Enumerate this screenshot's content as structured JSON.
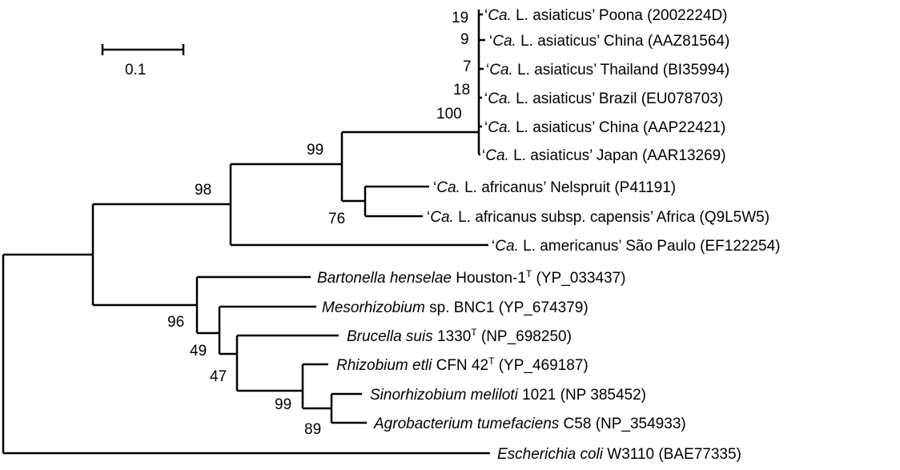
{
  "scale_bar": {
    "label": "0.1"
  },
  "leaves": [
    {
      "id": "poona",
      "parts": [
        [
          "plain",
          "‘"
        ],
        [
          "italic",
          "Ca."
        ],
        [
          "plain",
          " L. asiaticus’ Poona (2002224D)"
        ]
      ]
    },
    {
      "id": "china1",
      "parts": [
        [
          "plain",
          "‘"
        ],
        [
          "italic",
          "Ca."
        ],
        [
          "plain",
          " L. asiaticus’ China (AAZ81564)"
        ]
      ]
    },
    {
      "id": "thailand",
      "parts": [
        [
          "plain",
          "‘"
        ],
        [
          "italic",
          "Ca."
        ],
        [
          "plain",
          " L. asiaticus’ Thailand (BI35994)"
        ]
      ]
    },
    {
      "id": "brazil",
      "parts": [
        [
          "plain",
          "‘"
        ],
        [
          "italic",
          "Ca."
        ],
        [
          "plain",
          " L. asiaticus’ Brazil (EU078703)"
        ]
      ]
    },
    {
      "id": "china2",
      "parts": [
        [
          "plain",
          "‘"
        ],
        [
          "italic",
          "Ca."
        ],
        [
          "plain",
          " L. asiaticus’ China (AAP22421)"
        ]
      ]
    },
    {
      "id": "japan",
      "parts": [
        [
          "plain",
          "‘"
        ],
        [
          "italic",
          "Ca."
        ],
        [
          "plain",
          " L. asiaticus’ Japan (AAR13269)"
        ]
      ]
    },
    {
      "id": "nelspruit",
      "parts": [
        [
          "plain",
          "‘"
        ],
        [
          "italic",
          "Ca."
        ],
        [
          "plain",
          " L. africanus’ Nelspruit (P41191)"
        ]
      ]
    },
    {
      "id": "capensis",
      "parts": [
        [
          "plain",
          "‘"
        ],
        [
          "italic",
          "Ca."
        ],
        [
          "plain",
          " L. africanus subsp. capensis’ Africa (Q9L5W5)"
        ]
      ]
    },
    {
      "id": "americanus",
      "parts": [
        [
          "plain",
          "‘"
        ],
        [
          "italic",
          "Ca."
        ],
        [
          "plain",
          " L. americanus’ São Paulo (EF122254)"
        ]
      ]
    },
    {
      "id": "bartonella",
      "parts": [
        [
          "italic",
          "Bartonella henselae"
        ],
        [
          "plain",
          " Houston-1"
        ],
        [
          "sup",
          "T"
        ],
        [
          "plain",
          " (YP_033437)"
        ]
      ]
    },
    {
      "id": "mesorhizobium",
      "parts": [
        [
          "italic",
          "Mesorhizobium"
        ],
        [
          "plain",
          " sp. BNC1 (YP_674379)"
        ]
      ]
    },
    {
      "id": "brucella",
      "parts": [
        [
          "italic",
          "Brucella suis"
        ],
        [
          "plain",
          " 1330"
        ],
        [
          "sup",
          "T"
        ],
        [
          "plain",
          " (NP_698250)"
        ]
      ]
    },
    {
      "id": "rhizobium",
      "parts": [
        [
          "italic",
          "Rhizobium etli"
        ],
        [
          "plain",
          " CFN 42"
        ],
        [
          "sup",
          "T"
        ],
        [
          "plain",
          " (YP_469187)"
        ]
      ]
    },
    {
      "id": "sinorhizobium",
      "parts": [
        [
          "italic",
          "Sinorhizobium meliloti"
        ],
        [
          "plain",
          " 1021 (NP 385452)"
        ]
      ]
    },
    {
      "id": "agrobacterium",
      "parts": [
        [
          "italic",
          "Agrobacterium tumefaciens"
        ],
        [
          "plain",
          " C58 (NP_354933)"
        ]
      ]
    },
    {
      "id": "ecoli",
      "parts": [
        [
          "italic",
          "Escherichia coli"
        ],
        [
          "plain",
          " W3110 (BAE77335)"
        ]
      ]
    }
  ],
  "bootstrap": {
    "poona": "19",
    "china1": "9",
    "thailand": "7",
    "brazil": "18",
    "asiaticus_clade": "100",
    "liberibacter_core": "99",
    "liberibacter_all": "98",
    "africanus": "76",
    "rhizobiales": "96",
    "meso_group": "49",
    "brucella_group": "47",
    "rhizobium_group": "99",
    "sino_agro": "89"
  }
}
